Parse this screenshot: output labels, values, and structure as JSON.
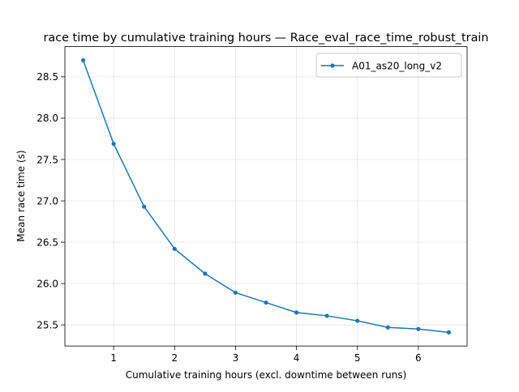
{
  "chart_data": {
    "type": "line",
    "title": "race time by cumulative training hours — Race_eval_race_time_robust_train",
    "xlabel": "Cumulative training hours (excl. downtime between runs)",
    "ylabel": "Mean race time (s)",
    "xlim": [
      0.2,
      6.8
    ],
    "ylim": [
      25.245,
      28.865
    ],
    "xticks": [
      1,
      2,
      3,
      4,
      5,
      6
    ],
    "xtick_labels": [
      "1",
      "2",
      "3",
      "4",
      "5",
      "6"
    ],
    "yticks": [
      25.5,
      26.0,
      26.5,
      27.0,
      27.5,
      28.0,
      28.5
    ],
    "ytick_labels": [
      "25.5",
      "26.0",
      "26.5",
      "27.0",
      "27.5",
      "28.0",
      "28.5"
    ],
    "grid": true,
    "legend_position": "top-right",
    "series": [
      {
        "name": "A01_as20_long_v2",
        "color": "#1f77b4",
        "marker": "circle",
        "x": [
          0.5,
          1.0,
          1.5,
          2.0,
          2.5,
          3.0,
          3.5,
          4.0,
          4.5,
          5.0,
          5.5,
          6.0,
          6.5
        ],
        "y": [
          28.7,
          27.69,
          26.93,
          26.42,
          26.12,
          25.89,
          25.77,
          25.65,
          25.61,
          25.55,
          25.47,
          25.45,
          25.41
        ]
      }
    ]
  }
}
